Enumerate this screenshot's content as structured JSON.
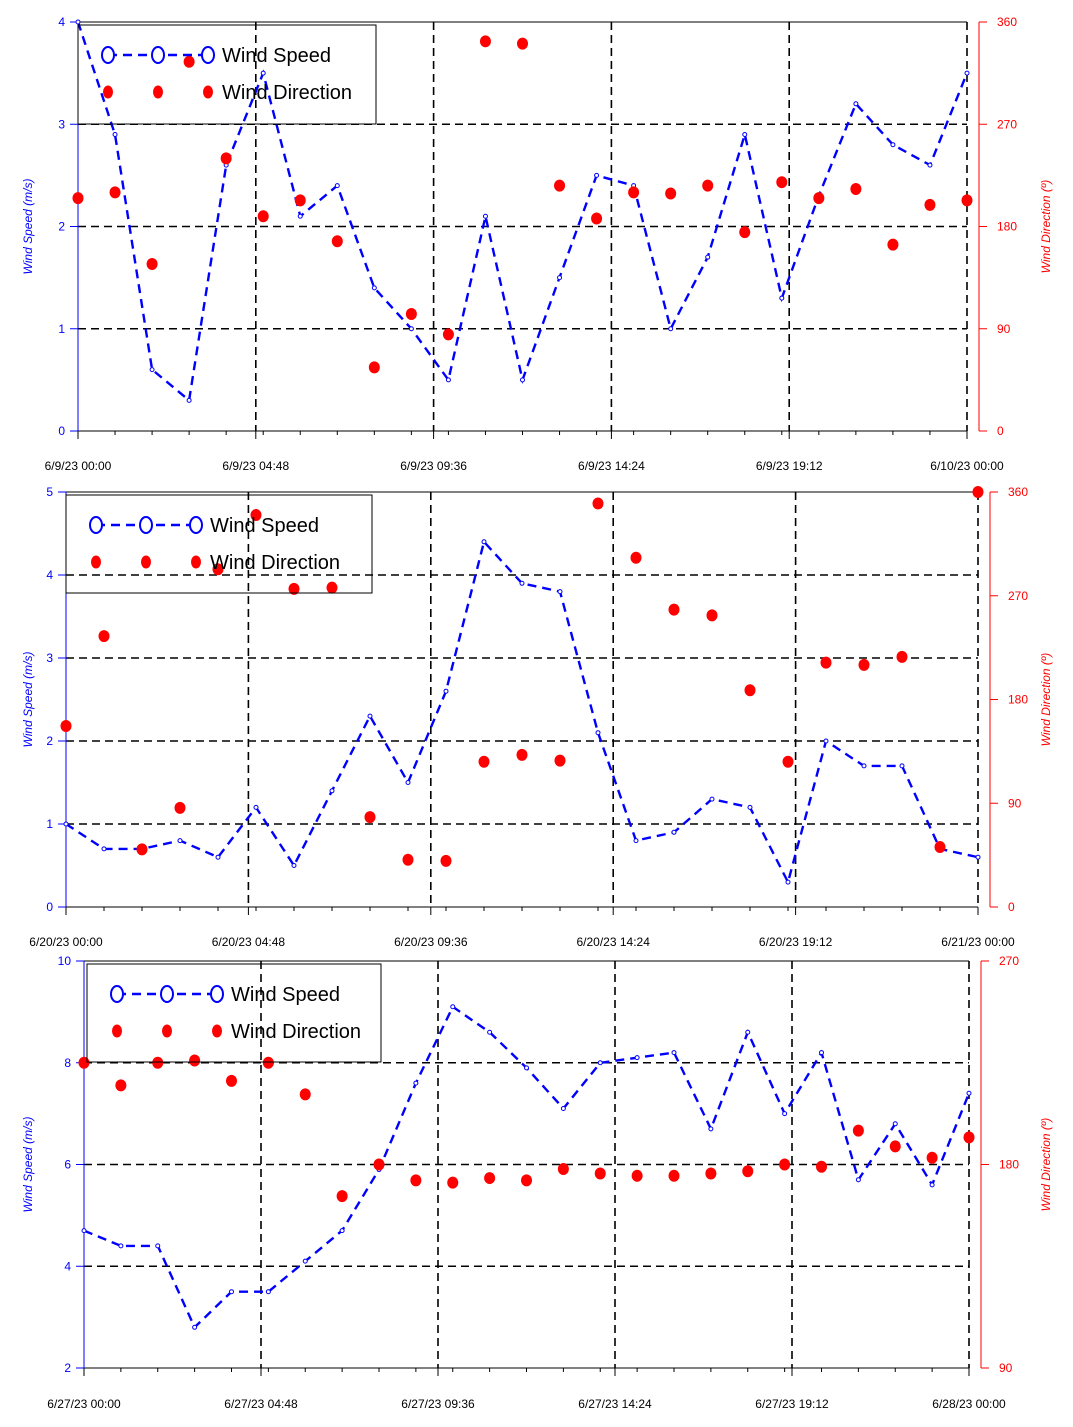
{
  "colors": {
    "speed": "#0000ff",
    "direction": "#ff0000",
    "speed_axis": "#0000ff",
    "direction_axis": "#ff0000",
    "grid": "#000000"
  },
  "chart_data": [
    {
      "type": "line",
      "title": "",
      "xlabel": "",
      "ylabel": "Wind Speed (m/s)",
      "y2label": "Wind Direction (º)",
      "ylim": [
        0,
        4
      ],
      "y_ticks": [
        0,
        1,
        2,
        3,
        4
      ],
      "y2lim": [
        0,
        360
      ],
      "y2_ticks": [
        0,
        90,
        180,
        270,
        360
      ],
      "x_ticks": [
        "6/9/23 00:00",
        "6/9/23 04:48",
        "6/9/23 09:36",
        "6/9/23 14:24",
        "6/9/23 19:12",
        "6/10/23 00:00"
      ],
      "grid": true,
      "legend_position": "top-left",
      "legend": [
        "Wind Speed",
        "Wind Direction"
      ],
      "x_hours": [
        0,
        1,
        2,
        3,
        4,
        5,
        6,
        7,
        8,
        9,
        10,
        11,
        12,
        13,
        14,
        15,
        16,
        17,
        18,
        19,
        20,
        21,
        22,
        23,
        24
      ],
      "series": [
        {
          "name": "Wind Speed",
          "axis": "left",
          "style": "dashed-line-circles",
          "values": [
            4.0,
            2.9,
            0.6,
            0.3,
            2.6,
            3.5,
            2.1,
            2.4,
            1.4,
            1.0,
            0.5,
            2.1,
            0.5,
            1.5,
            2.5,
            2.4,
            1.0,
            1.7,
            2.9,
            1.3,
            2.3,
            3.2,
            2.8,
            2.6,
            3.5
          ]
        },
        {
          "name": "Wind Direction",
          "axis": "right",
          "style": "dots",
          "values": [
            205,
            210,
            147,
            325,
            240,
            189,
            203,
            167,
            56,
            103,
            85,
            343,
            341,
            216,
            187,
            210,
            209,
            216,
            175,
            219,
            205,
            213,
            164,
            199,
            203
          ]
        }
      ]
    },
    {
      "type": "line",
      "title": "",
      "xlabel": "",
      "ylabel": "Wind Speed (m/s)",
      "y2label": "Wind Direction (º)",
      "ylim": [
        0,
        5
      ],
      "y_ticks": [
        0,
        1,
        2,
        3,
        4,
        5
      ],
      "y2lim": [
        0,
        360
      ],
      "y2_ticks": [
        0,
        90,
        180,
        270,
        360
      ],
      "x_ticks": [
        "6/20/23 00:00",
        "6/20/23 04:48",
        "6/20/23 09:36",
        "6/20/23 14:24",
        "6/20/23 19:12",
        "6/21/23 00:00"
      ],
      "grid": true,
      "legend_position": "top-left",
      "legend": [
        "Wind Speed",
        "Wind Direction"
      ],
      "x_hours": [
        0,
        1,
        2,
        3,
        4,
        5,
        6,
        7,
        8,
        9,
        10,
        11,
        12,
        13,
        14,
        15,
        16,
        17,
        18,
        19,
        20,
        21,
        22,
        23,
        24
      ],
      "series": [
        {
          "name": "Wind Speed",
          "axis": "left",
          "style": "dashed-line-circles",
          "values": [
            1.0,
            0.7,
            0.7,
            0.8,
            0.6,
            1.2,
            0.5,
            1.4,
            2.3,
            1.5,
            2.6,
            4.4,
            3.9,
            3.8,
            2.1,
            0.8,
            0.9,
            1.3,
            1.2,
            0.3,
            2.0,
            1.7,
            1.7,
            0.7,
            0.6
          ]
        },
        {
          "name": "Wind Direction",
          "axis": "right",
          "style": "dots",
          "values": [
            157,
            235,
            50,
            86,
            293,
            340,
            276,
            277,
            78,
            41,
            40,
            126,
            132,
            127,
            350,
            303,
            258,
            253,
            188,
            126,
            212,
            210,
            217,
            52,
            360
          ]
        }
      ]
    },
    {
      "type": "line",
      "title": "",
      "xlabel": "",
      "ylabel": "Wind Speed (m/s)",
      "y2label": "Wind Direction (º)",
      "ylim": [
        2,
        10
      ],
      "y_ticks": [
        2,
        4,
        6,
        8,
        10
      ],
      "y2lim": [
        90,
        270
      ],
      "y2_ticks": [
        90,
        180,
        270
      ],
      "x_ticks": [
        "6/27/23 00:00",
        "6/27/23 04:48",
        "6/27/23 09:36",
        "6/27/23 14:24",
        "6/27/23 19:12",
        "6/28/23 00:00"
      ],
      "grid": true,
      "legend_position": "top-left",
      "legend": [
        "Wind Speed",
        "Wind Direction"
      ],
      "x_hours": [
        0,
        1,
        2,
        3,
        4,
        5,
        6,
        7,
        8,
        9,
        10,
        11,
        12,
        13,
        14,
        15,
        16,
        17,
        18,
        19,
        20,
        21,
        22,
        23,
        24
      ],
      "series": [
        {
          "name": "Wind Speed",
          "axis": "left",
          "style": "dashed-line-circles",
          "values": [
            4.7,
            4.4,
            4.4,
            2.8,
            3.5,
            3.5,
            4.1,
            4.7,
            5.9,
            7.6,
            9.1,
            8.6,
            7.9,
            7.1,
            8.0,
            8.1,
            8.2,
            6.7,
            8.6,
            7.0,
            8.2,
            5.7,
            6.8,
            5.6,
            7.4
          ]
        },
        {
          "name": "Wind Direction",
          "axis": "right",
          "style": "dots",
          "values": [
            225,
            215,
            225,
            226,
            217,
            225,
            211,
            166,
            180,
            173,
            172,
            174,
            173,
            178,
            176,
            175,
            175,
            176,
            177,
            180,
            179,
            195,
            188,
            183,
            192
          ]
        }
      ]
    }
  ]
}
